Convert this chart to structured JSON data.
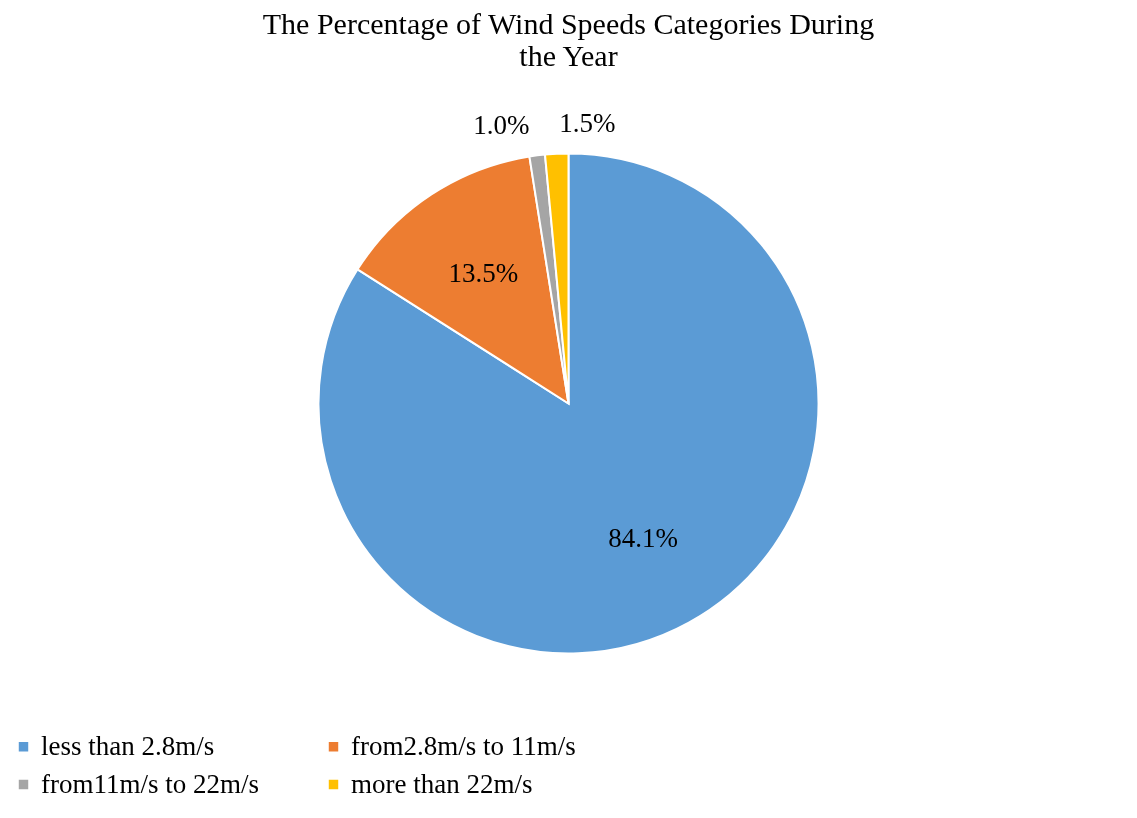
{
  "chart_data": {
    "type": "pie",
    "title": "The Percentage of Wind Speeds Categories During the Year",
    "categories": [
      "less than 2.8m/s",
      "from2.8m/s to 11m/s",
      "from11m/s to 22m/s",
      "more than 22m/s"
    ],
    "values": [
      84.1,
      13.5,
      1.0,
      1.5
    ],
    "value_labels": [
      "84.1%",
      "13.5%",
      "1.0%",
      "1.5%"
    ],
    "colors": [
      "#5b9bd5",
      "#ed7d31",
      "#a5a5a5",
      "#ffc000"
    ],
    "legend": "bottom"
  }
}
